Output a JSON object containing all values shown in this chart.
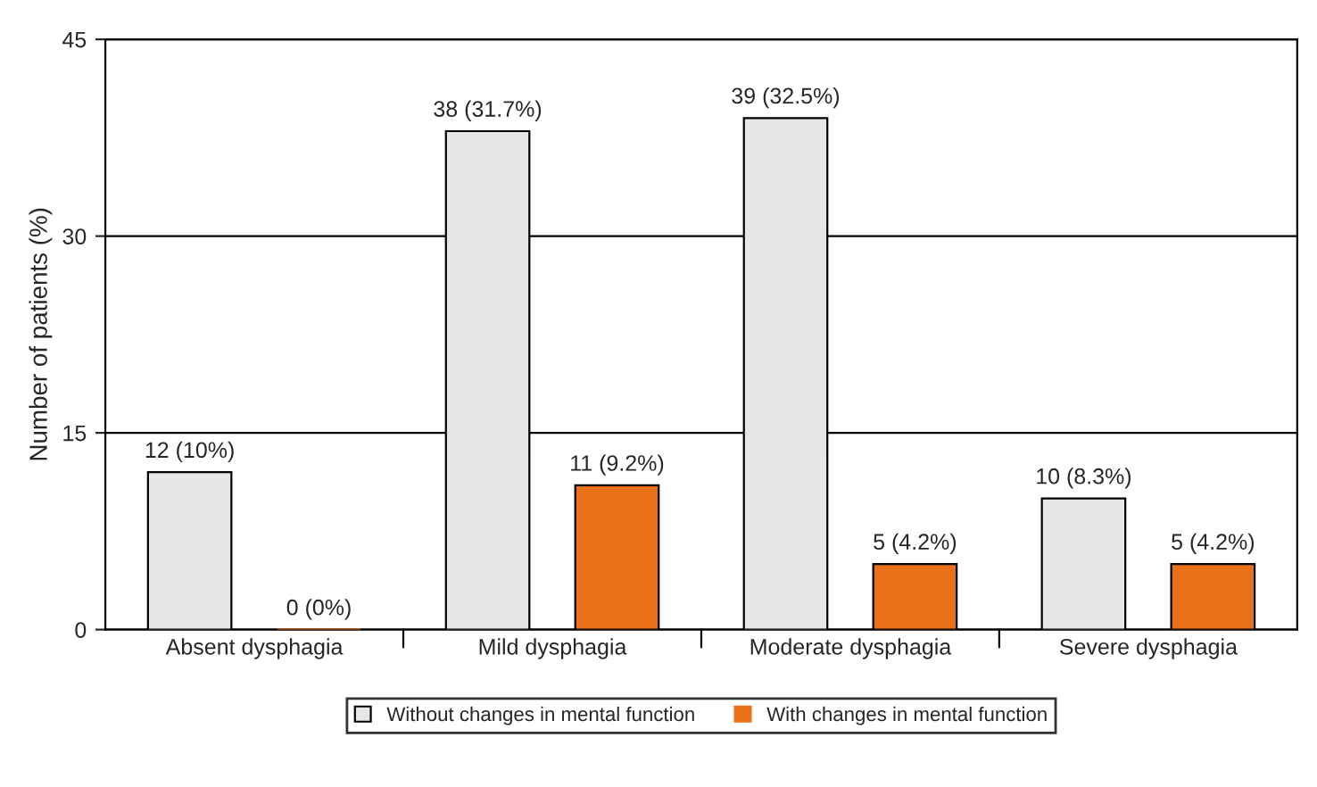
{
  "chart_data": {
    "type": "bar",
    "ylabel": "Number of patients (%)",
    "categories": [
      "Absent dysphagia",
      "Mild dysphagia",
      "Moderate dysphagia",
      "Severe dysphagia"
    ],
    "series": [
      {
        "name": "Without changes in mental function",
        "color": "#e6e6e6",
        "values": [
          12,
          38,
          39,
          10
        ],
        "value_labels": [
          "12 (10%)",
          "38 (31.7%)",
          "39 (32.5%)",
          "10 (8.3%)"
        ]
      },
      {
        "name": "With changes in mental function",
        "color": "#e8711a",
        "values": [
          0,
          11,
          5,
          5
        ],
        "value_labels": [
          "0 (0%)",
          "11 (9.2%)",
          "5 (4.2%)",
          "5 (4.2%)"
        ]
      }
    ],
    "ylim": [
      0,
      45
    ],
    "yticks": [
      0,
      15,
      30,
      45
    ],
    "grid": "y",
    "legend": "bottom"
  }
}
